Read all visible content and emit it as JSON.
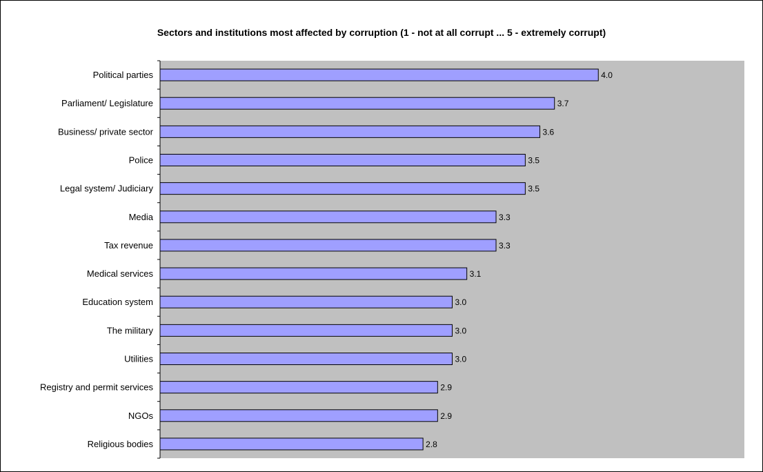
{
  "chart_data": {
    "type": "bar",
    "orientation": "horizontal",
    "title": "Sectors and institutions most affected by corruption (1 - not at all corrupt ... 5 - extremely corrupt)",
    "categories": [
      "Political parties",
      "Parliament/  Legislature",
      "Business/ private sector",
      "Police",
      "Legal system/ Judiciary",
      "Media",
      "Tax revenue",
      "Medical services",
      "Education system",
      "The military",
      "Utilities",
      "Registry and permit services",
      "NGOs",
      "Religious bodies"
    ],
    "values": [
      4.0,
      3.7,
      3.6,
      3.5,
      3.5,
      3.3,
      3.3,
      3.1,
      3.0,
      3.0,
      3.0,
      2.9,
      2.9,
      2.8
    ],
    "value_labels": [
      "4.0",
      "3.7",
      "3.6",
      "3.5",
      "3.5",
      "3.3",
      "3.3",
      "3.1",
      "3.0",
      "3.0",
      "3.0",
      "2.9",
      "2.9",
      "2.8"
    ],
    "xlim": [
      1,
      5
    ],
    "xlabel": "",
    "ylabel": "",
    "grid": false,
    "legend": "none",
    "colors": {
      "bar_fill": "#9f9fff",
      "bar_stroke": "#000000",
      "plot_background": "#c0c0c0"
    }
  }
}
